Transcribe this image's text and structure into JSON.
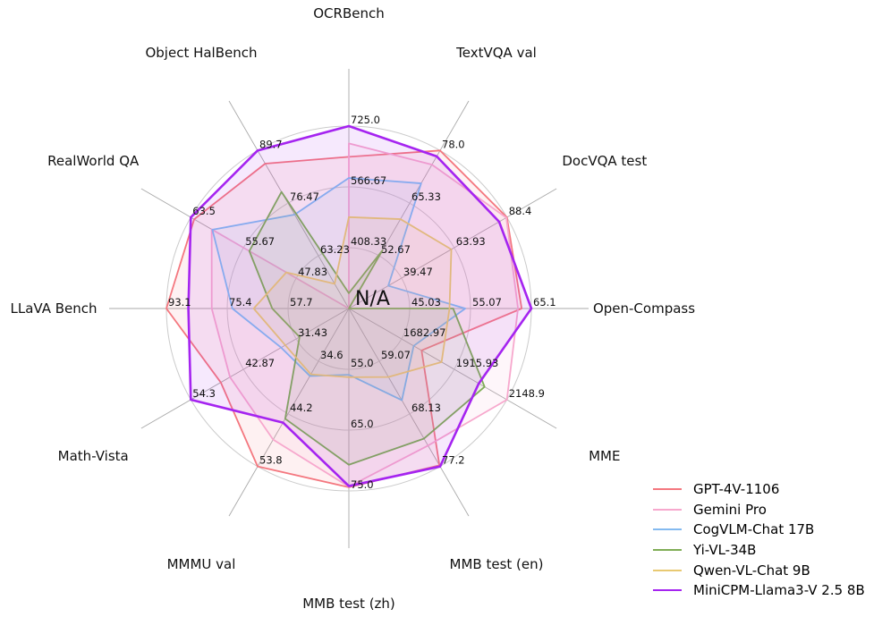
{
  "figure": {
    "background_color": "#ffffff",
    "text_color": "#000000"
  },
  "center_label": "N/A",
  "chart_data": {
    "type": "radar",
    "title": "",
    "grid": {
      "rings": 3,
      "ring_color": "#cbcbcb",
      "spoke_color": "#a9a9a9",
      "visible": true
    },
    "legend_position": "lower right",
    "na_policy": "missing values are plotted at the center (labeled N/A)",
    "axes": [
      {
        "label": "OCRBench",
        "min": 250,
        "max": 725,
        "ticks": [
          "408.33",
          "566.67",
          "725.0"
        ]
      },
      {
        "label": "TextVQA val",
        "min": 40,
        "max": 78.0,
        "ticks": [
          "52.67",
          "65.33",
          "78.0"
        ]
      },
      {
        "label": "DocVQA test",
        "min": 15,
        "max": 88.4,
        "ticks": [
          "39.47",
          "63.93",
          "88.4"
        ]
      },
      {
        "label": "Open-Compass",
        "min": 35,
        "max": 65.1,
        "ticks": [
          "45.03",
          "55.07",
          "65.1"
        ]
      },
      {
        "label": "MME",
        "min": 1450,
        "max": 2148.9,
        "ticks": [
          "1682.97",
          "1915.93",
          "2148.9"
        ]
      },
      {
        "label": "MMB test (en)",
        "min": 50,
        "max": 77.2,
        "ticks": [
          "59.07",
          "68.13",
          "77.2"
        ]
      },
      {
        "label": "MMB test (zh)",
        "min": 45,
        "max": 75.0,
        "ticks": [
          "55.0",
          "65.0",
          "75.0"
        ]
      },
      {
        "label": "MMMU val",
        "min": 25,
        "max": 53.8,
        "ticks": [
          "34.6",
          "44.2",
          "53.8"
        ]
      },
      {
        "label": "Math-Vista",
        "min": 20,
        "max": 54.3,
        "ticks": [
          "31.43",
          "42.87",
          "54.3"
        ]
      },
      {
        "label": "LLaVA Bench",
        "min": 40,
        "max": 93.1,
        "ticks": [
          "57.7",
          "75.4",
          "93.1"
        ]
      },
      {
        "label": "RealWorld QA",
        "min": 40,
        "max": 63.5,
        "ticks": [
          "47.83",
          "55.67",
          "63.5"
        ]
      },
      {
        "label": "Object HalBench",
        "min": 50,
        "max": 89.7,
        "ticks": [
          "63.23",
          "76.47",
          "89.7"
        ]
      }
    ],
    "series": [
      {
        "name": "GPT-4V-1106",
        "color": "#F4777F",
        "line_width": 1.8,
        "values": [
          645,
          78.0,
          88.4,
          63.5,
          1771.5,
          77.0,
          74.4,
          53.8,
          47.8,
          93.1,
          63.0,
          86.4
        ]
      },
      {
        "name": "Gemini Pro",
        "color": "#F7A8CD",
        "line_width": 1.8,
        "values": [
          680,
          74.6,
          88.1,
          62.9,
          2148.9,
          73.6,
          74.3,
          48.9,
          45.8,
          79.9,
          60.4,
          null
        ]
      },
      {
        "name": "CogVLM-Chat 17B",
        "color": "#84BAF0",
        "line_width": 1.8,
        "values": [
          590,
          70.1,
          33.3,
          54.2,
          1736.6,
          65.8,
          55.9,
          37.3,
          34.7,
          73.9,
          60.3,
          73.6
        ]
      },
      {
        "name": "Yi-VL-34B",
        "color": "#7FAD56",
        "line_width": 1.8,
        "values": [
          290,
          54.0,
          null,
          52.2,
          2050.2,
          72.4,
          70.7,
          45.1,
          30.7,
          62.3,
          54.8,
          79.3
        ]
      },
      {
        "name": "Qwen-VL-Chat 9B",
        "color": "#E8C972",
        "line_width": 1.8,
        "values": [
          488,
          61.5,
          62.6,
          51.6,
          1860.0,
          61.8,
          56.3,
          37.0,
          33.8,
          67.7,
          49.3,
          56.2
        ]
      },
      {
        "name": "MiniCPM-Llama3-V 2.5 8B",
        "color": "#A524F0",
        "line_width": 2.6,
        "values": [
          725,
          76.6,
          84.8,
          65.1,
          2024.6,
          77.2,
          74.2,
          45.8,
          54.3,
          86.7,
          63.5,
          89.7
        ]
      }
    ]
  }
}
